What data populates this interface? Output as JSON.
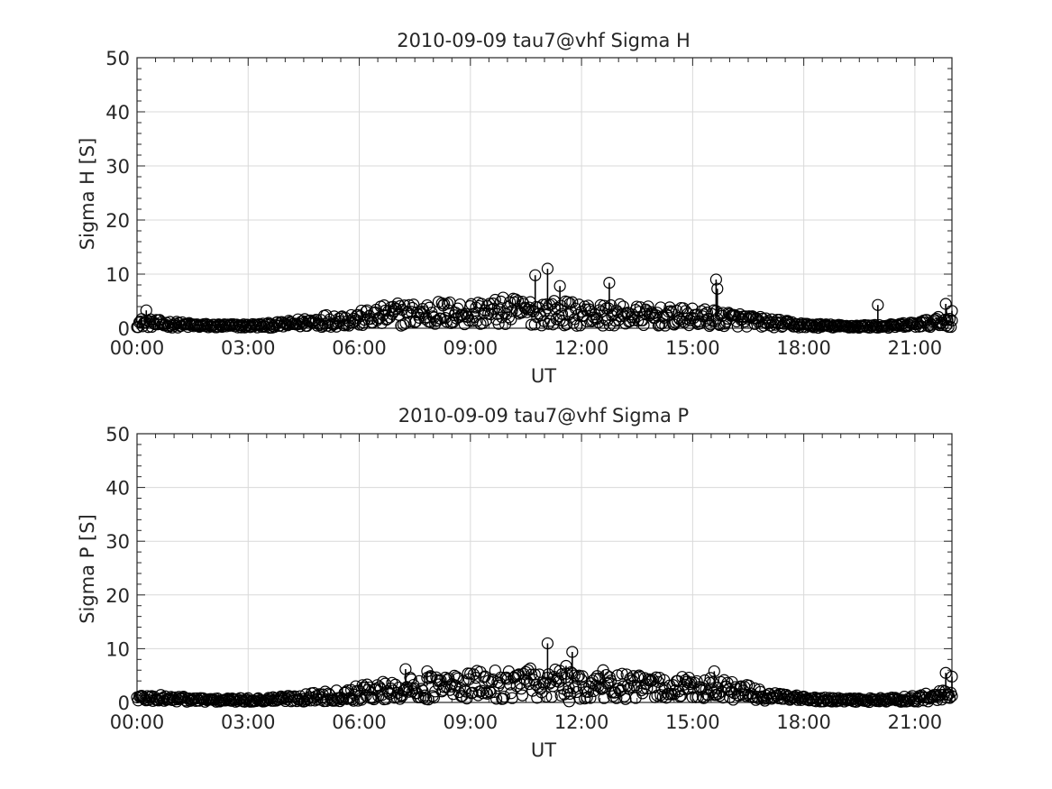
{
  "chart_data": [
    {
      "type": "scatter",
      "title": "2010-09-09  tau7@vhf Sigma H",
      "xlabel": "UT",
      "ylabel": "Sigma H [S]",
      "xlim": [
        "00:00",
        "22:00"
      ],
      "ylim": [
        0,
        50
      ],
      "xticks": [
        "00:00",
        "03:00",
        "06:00",
        "09:00",
        "12:00",
        "15:00",
        "18:00",
        "21:00"
      ],
      "yticks": [
        0,
        10,
        20,
        30,
        40,
        50
      ],
      "grid": true,
      "marker": "open-circle",
      "envelope_hours": [
        0,
        0.5,
        1,
        1.5,
        2,
        2.5,
        3,
        3.5,
        4,
        4.5,
        5,
        5.5,
        6,
        6.5,
        7,
        7.5,
        8,
        8.5,
        9,
        9.5,
        10,
        10.5,
        11,
        11.5,
        12,
        12.5,
        13,
        13.5,
        14,
        14.5,
        15,
        15.5,
        16,
        16.5,
        17,
        17.5,
        18,
        18.5,
        19,
        19.5,
        20,
        20.5,
        21,
        21.5,
        22
      ],
      "envelope_values": [
        1.2,
        1.0,
        0.8,
        0.6,
        0.5,
        0.5,
        0.5,
        0.6,
        0.8,
        1.2,
        1.6,
        1.8,
        2.0,
        2.5,
        3.0,
        3.0,
        3.2,
        3.2,
        3.2,
        3.4,
        3.6,
        3.5,
        3.4,
        3.2,
        3.0,
        2.8,
        2.8,
        2.6,
        2.5,
        2.4,
        2.3,
        2.2,
        2.0,
        1.6,
        1.2,
        0.9,
        0.6,
        0.5,
        0.4,
        0.4,
        0.4,
        0.5,
        0.8,
        1.2,
        1.6
      ],
      "peaks": [
        {
          "x": "00:15",
          "y": 3.3
        },
        {
          "x": "10:45",
          "y": 9.8
        },
        {
          "x": "11:05",
          "y": 11.0
        },
        {
          "x": "11:25",
          "y": 7.8
        },
        {
          "x": "12:45",
          "y": 8.4
        },
        {
          "x": "15:38",
          "y": 9.0
        },
        {
          "x": "15:40",
          "y": 7.3
        },
        {
          "x": "20:00",
          "y": 4.3
        },
        {
          "x": "21:50",
          "y": 4.5
        },
        {
          "x": "22:00",
          "y": 3.2
        }
      ]
    },
    {
      "type": "scatter",
      "title": "2010-09-09  tau7@vhf Sigma P",
      "xlabel": "UT",
      "ylabel": "Sigma P [S]",
      "xlim": [
        "00:00",
        "22:00"
      ],
      "ylim": [
        0,
        50
      ],
      "xticks": [
        "00:00",
        "03:00",
        "06:00",
        "09:00",
        "12:00",
        "15:00",
        "18:00",
        "21:00"
      ],
      "yticks": [
        0,
        10,
        20,
        30,
        40,
        50
      ],
      "grid": true,
      "marker": "open-circle",
      "envelope_hours": [
        0,
        0.5,
        1,
        1.5,
        2,
        2.5,
        3,
        3.5,
        4,
        4.5,
        5,
        5.5,
        6,
        6.5,
        7,
        7.5,
        8,
        8.5,
        9,
        9.5,
        10,
        10.5,
        11,
        11.5,
        12,
        12.5,
        13,
        13.5,
        14,
        14.5,
        15,
        15.5,
        16,
        16.5,
        17,
        17.5,
        18,
        18.5,
        19,
        19.5,
        20,
        20.5,
        21,
        21.5,
        22
      ],
      "envelope_values": [
        1.0,
        0.9,
        0.8,
        0.6,
        0.5,
        0.5,
        0.5,
        0.6,
        0.8,
        1.0,
        1.3,
        1.6,
        2.0,
        2.4,
        2.8,
        3.0,
        3.2,
        3.4,
        3.6,
        3.8,
        4.0,
        4.0,
        4.0,
        3.8,
        3.6,
        3.4,
        3.4,
        3.2,
        3.2,
        3.0,
        3.0,
        3.0,
        2.8,
        2.0,
        1.4,
        1.0,
        0.7,
        0.6,
        0.5,
        0.5,
        0.5,
        0.6,
        0.8,
        1.2,
        1.6
      ],
      "peaks": [
        {
          "x": "07:15",
          "y": 6.2
        },
        {
          "x": "07:50",
          "y": 5.8
        },
        {
          "x": "11:05",
          "y": 11.0
        },
        {
          "x": "11:35",
          "y": 6.8
        },
        {
          "x": "11:45",
          "y": 9.4
        },
        {
          "x": "11:40",
          "y": 0.2
        },
        {
          "x": "12:35",
          "y": 6.0
        },
        {
          "x": "15:35",
          "y": 5.8
        },
        {
          "x": "21:50",
          "y": 5.5
        },
        {
          "x": "22:00",
          "y": 4.8
        }
      ]
    }
  ]
}
